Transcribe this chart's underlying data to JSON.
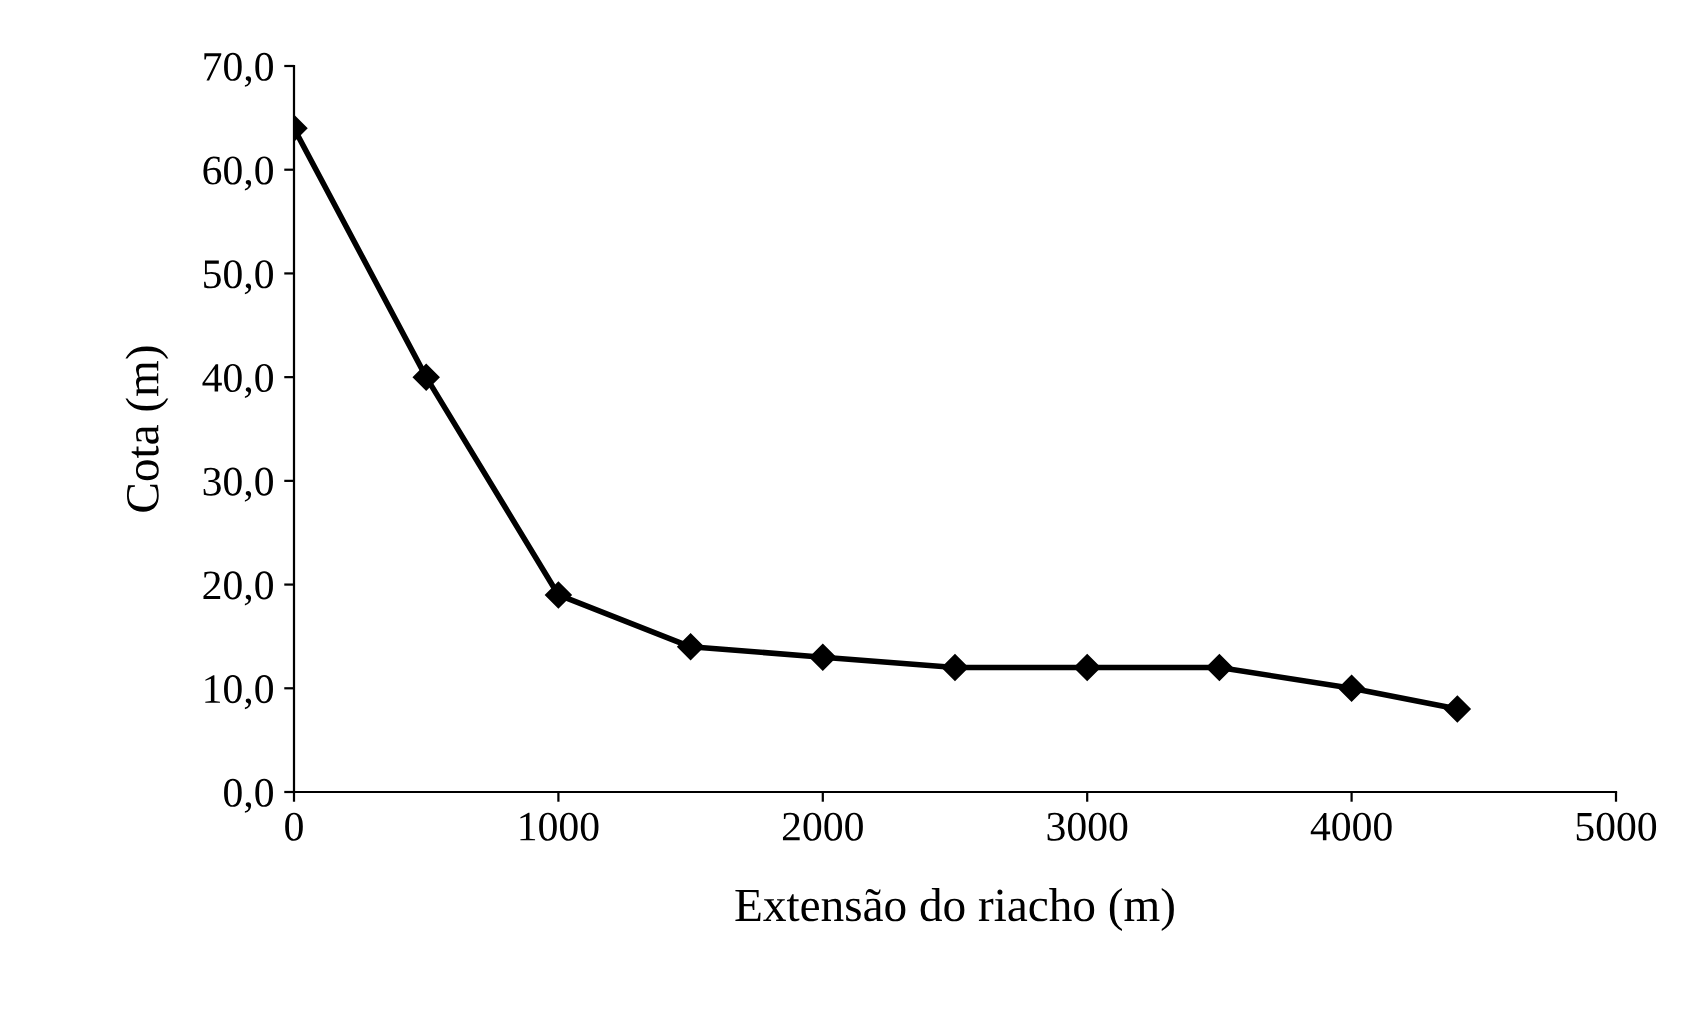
{
  "chart_data": {
    "type": "line",
    "xlabel": "Extensão do riacho (m)",
    "ylabel": "Cota (m)",
    "x": [
      0,
      500,
      1000,
      1500,
      2000,
      2500,
      3000,
      3500,
      4000,
      4400
    ],
    "series": [
      {
        "color": "#000000",
        "values": [
          64,
          40,
          19,
          14,
          13,
          12,
          12,
          12,
          10,
          8
        ]
      }
    ],
    "xlim": [
      0,
      5000
    ],
    "xticks": [
      0,
      1000,
      2000,
      3000,
      4000,
      5000
    ],
    "ylim": [
      0,
      70
    ],
    "yticks": [
      {
        "value": 0,
        "label": "0,0"
      },
      {
        "value": 10,
        "label": "10,0"
      },
      {
        "value": 20,
        "label": "20,0"
      },
      {
        "value": 30,
        "label": "30,0"
      },
      {
        "value": 40,
        "label": "40,0"
      },
      {
        "value": 50,
        "label": "50,0"
      },
      {
        "value": 60,
        "label": "60,0"
      },
      {
        "value": 70,
        "label": "70,0"
      }
    ],
    "marker": "diamond",
    "line_style": "solid",
    "grid": false
  }
}
